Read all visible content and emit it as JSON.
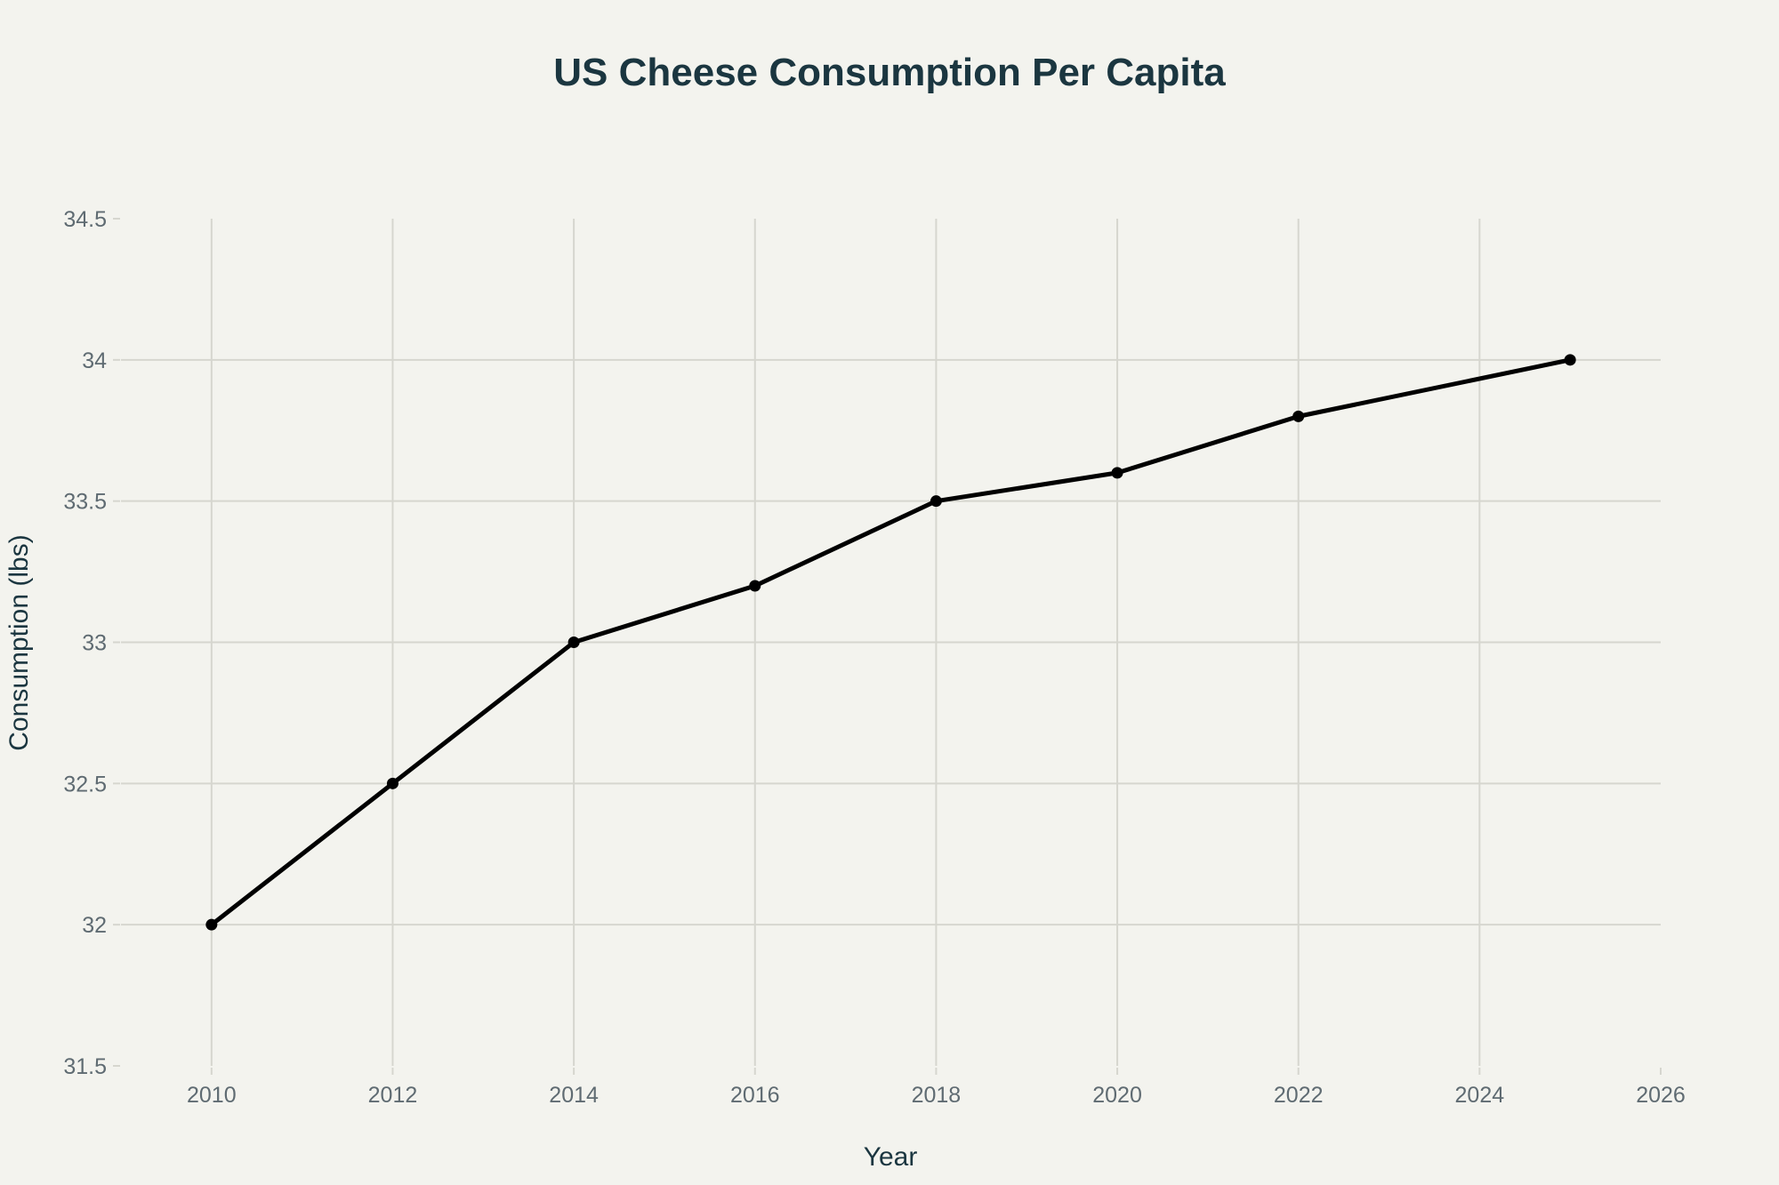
{
  "chart_data": {
    "type": "line",
    "title": "US Cheese Consumption Per Capita",
    "xlabel": "Year",
    "ylabel": "Consumption (lbs)",
    "xlim": [
      2009,
      2026
    ],
    "ylim": [
      31.5,
      34.5
    ],
    "xticks": [
      2010,
      2012,
      2014,
      2016,
      2018,
      2020,
      2022,
      2024,
      2026
    ],
    "yticks": [
      31.5,
      32,
      32.5,
      33,
      33.5,
      34,
      34.5
    ],
    "ytick_labels": [
      "31.5",
      "32",
      "32.5",
      "33",
      "33.5",
      "34",
      "34.5"
    ],
    "grid": true,
    "legend": "none",
    "series": [
      {
        "name": "Consumption",
        "color": "#000000",
        "x": [
          2010,
          2012,
          2014,
          2016,
          2018,
          2020,
          2022,
          2025
        ],
        "y": [
          32.0,
          32.5,
          33.0,
          33.2,
          33.5,
          33.6,
          33.8,
          34.0
        ]
      }
    ]
  }
}
